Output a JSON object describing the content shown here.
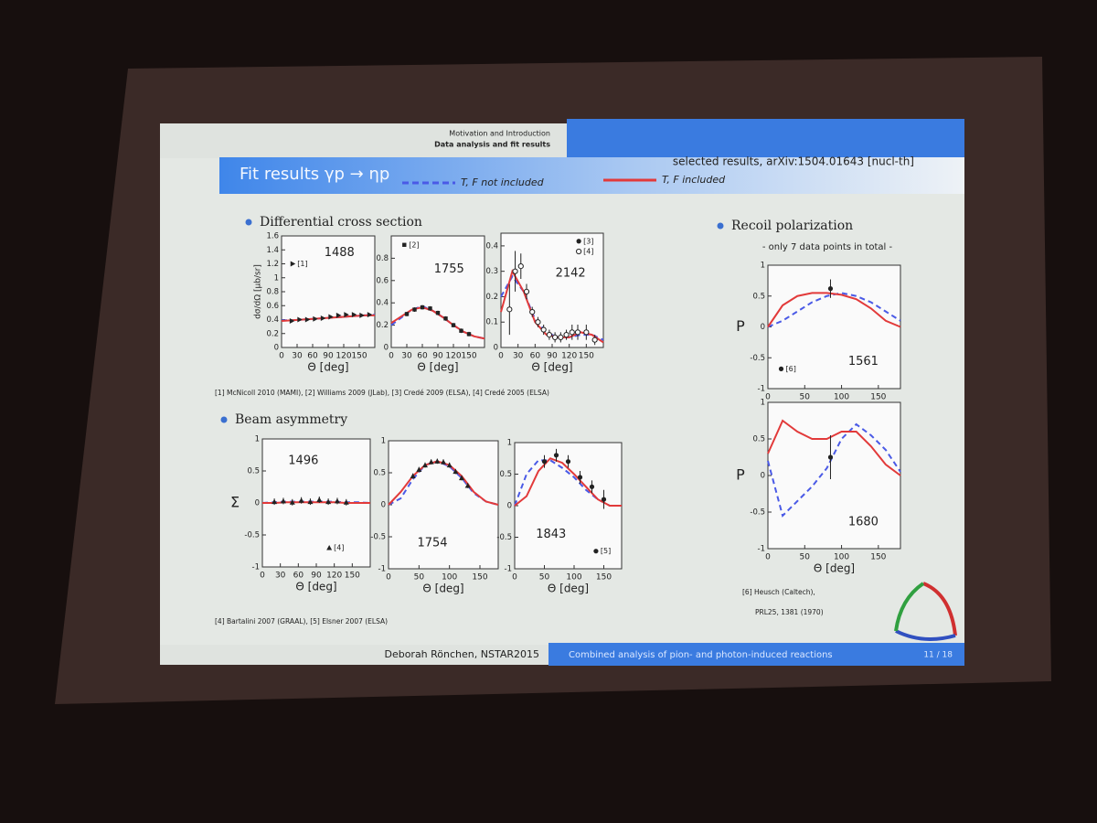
{
  "header": {
    "nav": [
      "Motivation and Introduction",
      "Data analysis and fit results"
    ],
    "title": "Fit results γp → ηp",
    "subtitle": "selected results, arXiv:1504.01643 [nucl-th]"
  },
  "legend": [
    {
      "name": "T, F not included",
      "color": "#4a5ae6",
      "dashed": true
    },
    {
      "name": "T, F included",
      "color": "#e23a3a",
      "dashed": false
    }
  ],
  "sections": [
    {
      "title": "Differential cross section",
      "reference": [
        "[1] McNicoll 2010 (MAMI), [2] Williams 2009 (JLab), [3] Credé 2009 (ELSA), [4] Credé 2005 (ELSA)"
      ],
      "plots": [
        {
          "label": "1488",
          "ylabel": "dσ/dΩ [μb/sr]",
          "xlabel": "Θ [deg]",
          "xlim": [
            0,
            180
          ],
          "ylim": [
            0,
            1.6
          ],
          "xticks": [
            0,
            30,
            60,
            90,
            120,
            150
          ],
          "yticks": [
            0,
            0.2,
            0.4,
            0.6,
            0.8,
            1,
            1.2,
            1.4,
            1.6
          ],
          "markers": [
            {
              "label": "[1]",
              "symbol": "triangle-right"
            }
          ],
          "point_symbol": "triangle-right",
          "curve_x": [
            0,
            20,
            40,
            60,
            80,
            100,
            120,
            140,
            160,
            180
          ],
          "curves": [
            [
              0.39,
              0.39,
              0.4,
              0.41,
              0.42,
              0.43,
              0.44,
              0.45,
              0.46,
              0.47
            ],
            [
              0.38,
              0.39,
              0.4,
              0.41,
              0.42,
              0.43,
              0.44,
              0.45,
              0.46,
              0.46
            ]
          ],
          "points": {
            "x": [
              20,
              35,
              50,
              65,
              80,
              95,
              110,
              125,
              140,
              155,
              170
            ],
            "y": [
              0.38,
              0.4,
              0.4,
              0.41,
              0.42,
              0.44,
              0.46,
              0.47,
              0.47,
              0.46,
              0.47
            ],
            "err": [
              0.02,
              0.02,
              0.02,
              0.02,
              0.02,
              0.02,
              0.02,
              0.02,
              0.02,
              0.02,
              0.02
            ]
          }
        },
        {
          "label": "1755",
          "xlabel": "Θ [deg]",
          "xlim": [
            0,
            180
          ],
          "ylim": [
            0,
            1
          ],
          "xticks": [
            0,
            30,
            60,
            90,
            120,
            150
          ],
          "yticks": [
            0,
            0.2,
            0.4,
            0.6,
            0.8
          ],
          "markers": [
            {
              "label": "[2]",
              "symbol": "square"
            }
          ],
          "point_symbol": "square",
          "curve_x": [
            0,
            20,
            40,
            60,
            80,
            100,
            120,
            140,
            160,
            180
          ],
          "curves": [
            [
              0.2,
              0.27,
              0.34,
              0.37,
              0.33,
              0.27,
              0.2,
              0.14,
              0.1,
              0.08
            ],
            [
              0.22,
              0.28,
              0.34,
              0.36,
              0.33,
              0.27,
              0.2,
              0.14,
              0.1,
              0.08
            ]
          ],
          "points": {
            "x": [
              30,
              45,
              60,
              75,
              90,
              105,
              120,
              135,
              150
            ],
            "y": [
              0.3,
              0.34,
              0.36,
              0.35,
              0.31,
              0.26,
              0.2,
              0.15,
              0.12
            ],
            "err": [
              0.02,
              0.02,
              0.02,
              0.02,
              0.02,
              0.02,
              0.02,
              0.02,
              0.02
            ]
          }
        },
        {
          "label": "2142",
          "xlabel": "Θ [deg]",
          "xlim": [
            0,
            180
          ],
          "ylim": [
            0,
            0.45
          ],
          "xticks": [
            0,
            30,
            60,
            90,
            120,
            150
          ],
          "yticks": [
            0,
            0.1,
            0.2,
            0.3,
            0.4
          ],
          "markers": [
            {
              "label": "[3]",
              "symbol": "circle"
            },
            {
              "label": "[4]",
              "symbol": "open-circle"
            }
          ],
          "point_symbol": "open-circle",
          "curve_x": [
            0,
            20,
            40,
            60,
            80,
            100,
            120,
            140,
            160,
            180
          ],
          "curves": [
            [
              0.2,
              0.28,
              0.22,
              0.11,
              0.06,
              0.04,
              0.04,
              0.05,
              0.05,
              0.03
            ],
            [
              0.14,
              0.3,
              0.22,
              0.1,
              0.05,
              0.04,
              0.04,
              0.06,
              0.05,
              0.02
            ]
          ],
          "points": {
            "x": [
              15,
              25,
              35,
              45,
              55,
              65,
              75,
              85,
              95,
              105,
              115,
              125,
              135,
              150,
              165
            ],
            "y": [
              0.15,
              0.3,
              0.32,
              0.22,
              0.14,
              0.1,
              0.07,
              0.05,
              0.04,
              0.04,
              0.05,
              0.06,
              0.06,
              0.06,
              0.03
            ],
            "err": [
              0.1,
              0.08,
              0.05,
              0.03,
              0.02,
              0.02,
              0.02,
              0.02,
              0.02,
              0.02,
              0.02,
              0.03,
              0.03,
              0.03,
              0.02
            ]
          }
        }
      ]
    },
    {
      "title": "Beam asymmetry",
      "reference": [
        "[4] Bartalini 2007 (GRAAL), [5] Elsner 2007 (ELSA)"
      ],
      "plots": [
        {
          "label": "1496",
          "ylabel": "Σ",
          "xlabel": "Θ [deg]",
          "xlim": [
            0,
            180
          ],
          "ylim": [
            -1,
            1
          ],
          "xticks": [
            0,
            30,
            60,
            90,
            120,
            150
          ],
          "yticks": [
            -1,
            -0.5,
            0,
            0.5,
            1
          ],
          "markers": [
            {
              "label": "[4]",
              "symbol": "triangle"
            }
          ],
          "point_symbol": "triangle",
          "curve_x": [
            0,
            20,
            40,
            60,
            80,
            100,
            120,
            140,
            160,
            180
          ],
          "curves": [
            [
              0,
              0.01,
              0.02,
              0.02,
              0.02,
              0.02,
              0.02,
              0.01,
              0.01,
              0
            ],
            [
              0,
              0,
              0.01,
              0.01,
              0.01,
              0.01,
              0.01,
              0,
              0,
              0
            ]
          ],
          "points": {
            "x": [
              20,
              35,
              50,
              65,
              80,
              95,
              110,
              125,
              140
            ],
            "y": [
              0.02,
              0.03,
              0.01,
              0.04,
              0.02,
              0.05,
              0.02,
              0.03,
              0.01
            ],
            "err": [
              0.05,
              0.05,
              0.05,
              0.05,
              0.05,
              0.05,
              0.05,
              0.05,
              0.05
            ]
          }
        },
        {
          "label": "1754",
          "xlabel": "Θ [deg]",
          "xlim": [
            0,
            180
          ],
          "ylim": [
            -1,
            1
          ],
          "xticks": [
            0,
            50,
            100,
            150
          ],
          "yticks": [
            -1,
            -0.5,
            0,
            0.5,
            1
          ],
          "markers": [],
          "point_symbol": "triangle",
          "curve_x": [
            0,
            20,
            40,
            60,
            80,
            100,
            120,
            140,
            160,
            180
          ],
          "curves": [
            [
              0,
              0.1,
              0.4,
              0.62,
              0.68,
              0.6,
              0.42,
              0.18,
              0.05,
              0
            ],
            [
              0,
              0.2,
              0.45,
              0.62,
              0.68,
              0.62,
              0.45,
              0.2,
              0.05,
              0
            ]
          ],
          "points": {
            "x": [
              40,
              50,
              60,
              70,
              80,
              90,
              100,
              110,
              120,
              130
            ],
            "y": [
              0.45,
              0.55,
              0.62,
              0.67,
              0.68,
              0.67,
              0.62,
              0.52,
              0.42,
              0.3
            ],
            "err": [
              0.04,
              0.04,
              0.04,
              0.04,
              0.04,
              0.04,
              0.04,
              0.04,
              0.04,
              0.04
            ]
          }
        },
        {
          "label": "1843",
          "xlabel": "Θ [deg]",
          "xlim": [
            0,
            180
          ],
          "ylim": [
            -1,
            1
          ],
          "xticks": [
            0,
            50,
            100,
            150
          ],
          "yticks": [
            -1,
            -0.5,
            0,
            0.5,
            1
          ],
          "markers": [
            {
              "label": "[5]",
              "symbol": "circle"
            }
          ],
          "point_symbol": "circle",
          "curve_x": [
            0,
            20,
            40,
            60,
            80,
            100,
            120,
            140,
            160,
            180
          ],
          "curves": [
            [
              0,
              0.5,
              0.72,
              0.72,
              0.6,
              0.45,
              0.25,
              0.1,
              0,
              0
            ],
            [
              0,
              0.15,
              0.55,
              0.75,
              0.68,
              0.5,
              0.3,
              0.1,
              0,
              0
            ]
          ],
          "points": {
            "x": [
              50,
              70,
              90,
              110,
              130,
              150
            ],
            "y": [
              0.7,
              0.8,
              0.7,
              0.45,
              0.3,
              0.1
            ],
            "err": [
              0.1,
              0.1,
              0.1,
              0.1,
              0.1,
              0.15
            ]
          }
        }
      ]
    },
    {
      "title": "Recoil polarization",
      "note": "- only 7 data points in total -",
      "reference": [
        "[6] Heusch (Caltech),",
        "PRL25, 1381 (1970)"
      ],
      "plots": [
        {
          "label": "1561",
          "ylabel": "P",
          "xlim": [
            0,
            180
          ],
          "ylim": [
            -1,
            1
          ],
          "xticks": [
            0,
            50,
            100,
            150
          ],
          "yticks": [
            -1,
            -0.5,
            0,
            0.5,
            1
          ],
          "markers": [
            {
              "label": "[6]",
              "symbol": "circle"
            }
          ],
          "point_symbol": "circle",
          "curve_x": [
            0,
            20,
            40,
            60,
            80,
            100,
            120,
            140,
            160,
            180
          ],
          "curves": [
            [
              0,
              0.1,
              0.25,
              0.4,
              0.5,
              0.55,
              0.5,
              0.4,
              0.25,
              0.1
            ],
            [
              0,
              0.35,
              0.5,
              0.55,
              0.55,
              0.52,
              0.45,
              0.3,
              0.1,
              0
            ]
          ],
          "points": {
            "x": [
              85
            ],
            "y": [
              0.62
            ],
            "err": [
              0.15
            ]
          }
        },
        {
          "label": "1680",
          "ylabel": "P",
          "xlabel": "Θ [deg]",
          "xlim": [
            0,
            180
          ],
          "ylim": [
            -1,
            1
          ],
          "xticks": [
            0,
            50,
            100,
            150
          ],
          "yticks": [
            -1,
            -0.5,
            0,
            0.5,
            1
          ],
          "markers": [],
          "point_symbol": "circle",
          "curve_x": [
            0,
            20,
            40,
            60,
            80,
            100,
            120,
            140,
            160,
            180
          ],
          "curves": [
            [
              0.2,
              -0.55,
              -0.35,
              -0.15,
              0.1,
              0.5,
              0.7,
              0.55,
              0.35,
              0.05
            ],
            [
              0.3,
              0.75,
              0.6,
              0.5,
              0.5,
              0.6,
              0.6,
              0.4,
              0.15,
              0
            ]
          ],
          "points": {
            "x": [
              85
            ],
            "y": [
              0.25
            ],
            "err": [
              0.3
            ]
          }
        }
      ]
    }
  ],
  "footer": {
    "author": "Deborah Rönchen, NSTAR2015",
    "talk": "Combined analysis of pion- and photon-induced reactions",
    "page": "11 / 18"
  }
}
